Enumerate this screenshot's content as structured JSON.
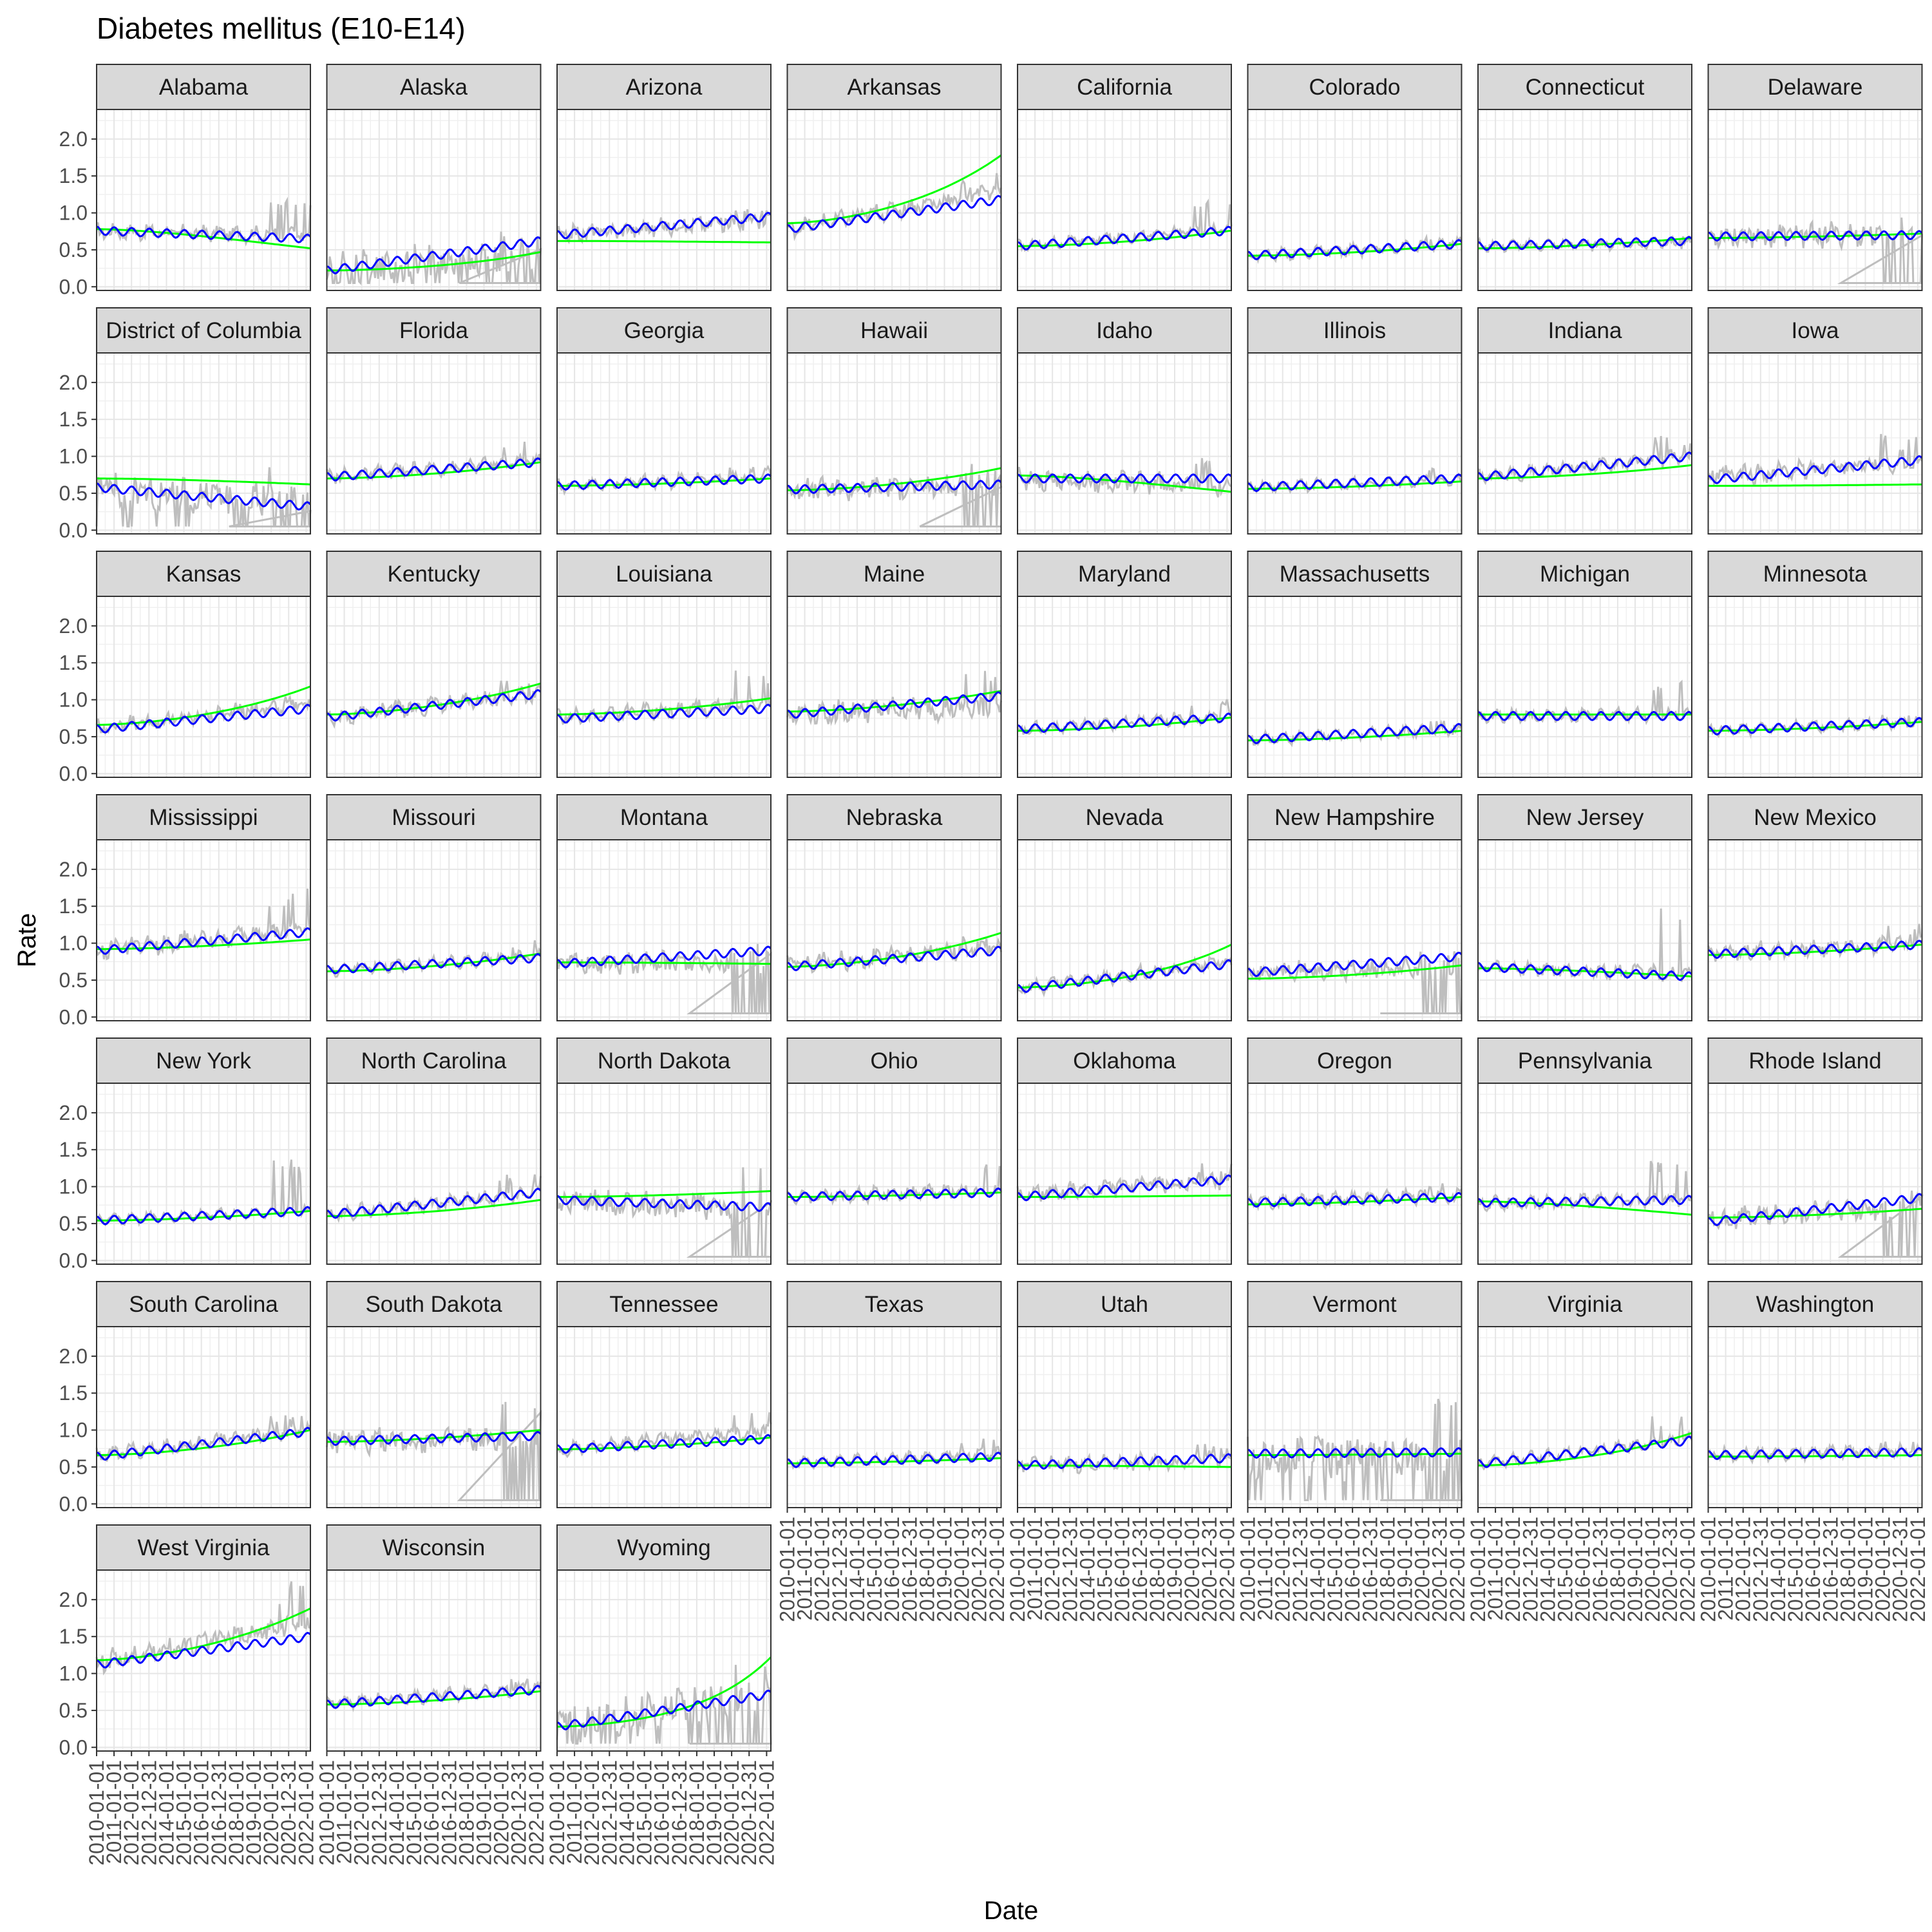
{
  "chart_data": {
    "type": "line",
    "title": "Diabetes mellitus (E10-E14)",
    "xlabel": "Date",
    "ylabel": "Rate",
    "ylim": [
      -0.05,
      2.4
    ],
    "y_ticks": [
      "0.0",
      "0.5",
      "1.0",
      "1.5",
      "2.0"
    ],
    "x_ticks": [
      "2010-01-01",
      "2011-01-01",
      "2012-01-01",
      "2012-12-31",
      "2014-01-01",
      "2015-01-01",
      "2016-01-01",
      "2016-12-31",
      "2018-01-01",
      "2019-01-01",
      "2020-01-01",
      "2020-12-31",
      "2022-01-01"
    ],
    "x_range": [
      "2010-01-01",
      "2022-03-31"
    ],
    "grid": true,
    "series_colors": {
      "observed": "#bebebe",
      "fitted": "#0000ff",
      "trend": "#00ff00"
    },
    "panels": [
      {
        "state": "Alabama",
        "fitted": [
          0.76,
          0.65
        ],
        "trend": [
          0.78,
          0.52
        ],
        "obs_mean": [
          0.75,
          0.7
        ],
        "noise": 0.08,
        "spike": 1.2,
        "dropout": false
      },
      {
        "state": "Alaska",
        "fitted": [
          0.22,
          0.62
        ],
        "trend": [
          0.22,
          0.47
        ],
        "obs_mean": [
          0.22,
          0.45
        ],
        "noise": 0.22,
        "spike": 0.8,
        "dropout": true
      },
      {
        "state": "Arizona",
        "fitted": [
          0.7,
          0.95
        ],
        "trend": [
          0.62,
          0.6
        ],
        "obs_mean": [
          0.7,
          0.92
        ],
        "noise": 0.09,
        "spike": 1.1,
        "dropout": false
      },
      {
        "state": "Arkansas",
        "fitted": [
          0.78,
          1.18
        ],
        "trend": [
          0.86,
          1.78
        ],
        "obs_mean": [
          0.78,
          1.3
        ],
        "noise": 0.09,
        "spike": 1.55,
        "dropout": false
      },
      {
        "state": "California",
        "fitted": [
          0.55,
          0.76
        ],
        "trend": [
          0.55,
          0.76
        ],
        "obs_mean": [
          0.55,
          0.8
        ],
        "noise": 0.05,
        "spike": 1.2,
        "dropout": false
      },
      {
        "state": "Colorado",
        "fitted": [
          0.42,
          0.58
        ],
        "trend": [
          0.42,
          0.58
        ],
        "obs_mean": [
          0.42,
          0.58
        ],
        "noise": 0.05,
        "spike": 0.68,
        "dropout": false
      },
      {
        "state": "Connecticut",
        "fitted": [
          0.55,
          0.62
        ],
        "trend": [
          0.52,
          0.66
        ],
        "obs_mean": [
          0.55,
          0.6
        ],
        "noise": 0.05,
        "spike": 0.7,
        "dropout": false
      },
      {
        "state": "Delaware",
        "fitted": [
          0.68,
          0.7
        ],
        "trend": [
          0.66,
          0.72
        ],
        "obs_mean": [
          0.7,
          0.7
        ],
        "noise": 0.14,
        "spike": 1.1,
        "dropout": true
      },
      {
        "state": "District of Columbia",
        "fitted": [
          0.58,
          0.32
        ],
        "trend": [
          0.7,
          0.62
        ],
        "obs_mean": [
          0.55,
          0.4
        ],
        "noise": 0.22,
        "spike": 1.0,
        "dropout": true
      },
      {
        "state": "Florida",
        "fitted": [
          0.72,
          0.92
        ],
        "trend": [
          0.7,
          0.92
        ],
        "obs_mean": [
          0.72,
          0.95
        ],
        "noise": 0.07,
        "spike": 1.3,
        "dropout": false
      },
      {
        "state": "Georgia",
        "fitted": [
          0.6,
          0.7
        ],
        "trend": [
          0.6,
          0.7
        ],
        "obs_mean": [
          0.6,
          0.72
        ],
        "noise": 0.06,
        "spike": 0.95,
        "dropout": false
      },
      {
        "state": "Hawaii",
        "fitted": [
          0.55,
          0.62
        ],
        "trend": [
          0.54,
          0.84
        ],
        "obs_mean": [
          0.55,
          0.6
        ],
        "noise": 0.13,
        "spike": 0.9,
        "dropout": true
      },
      {
        "state": "Idaho",
        "fitted": [
          0.7,
          0.7
        ],
        "trend": [
          0.74,
          0.52
        ],
        "obs_mean": [
          0.7,
          0.6
        ],
        "noise": 0.12,
        "spike": 1.0,
        "dropout": false
      },
      {
        "state": "Illinois",
        "fitted": [
          0.58,
          0.7
        ],
        "trend": [
          0.56,
          0.66
        ],
        "obs_mean": [
          0.58,
          0.68
        ],
        "noise": 0.05,
        "spike": 0.85,
        "dropout": false
      },
      {
        "state": "Indiana",
        "fitted": [
          0.72,
          1.0
        ],
        "trend": [
          0.7,
          0.88
        ],
        "obs_mean": [
          0.72,
          1.0
        ],
        "noise": 0.07,
        "spike": 1.3,
        "dropout": false
      },
      {
        "state": "Iowa",
        "fitted": [
          0.68,
          0.95
        ],
        "trend": [
          0.6,
          0.62
        ],
        "obs_mean": [
          0.7,
          0.95
        ],
        "noise": 0.12,
        "spike": 1.35,
        "dropout": false
      },
      {
        "state": "Kansas",
        "fitted": [
          0.6,
          0.88
        ],
        "trend": [
          0.66,
          1.18
        ],
        "obs_mean": [
          0.62,
          0.95
        ],
        "noise": 0.08,
        "spike": 1.05,
        "dropout": false
      },
      {
        "state": "Kentucky",
        "fitted": [
          0.76,
          1.08
        ],
        "trend": [
          0.8,
          1.22
        ],
        "obs_mean": [
          0.76,
          1.08
        ],
        "noise": 0.09,
        "spike": 1.35,
        "dropout": false
      },
      {
        "state": "Louisiana",
        "fitted": [
          0.74,
          0.88
        ],
        "trend": [
          0.8,
          1.02
        ],
        "obs_mean": [
          0.75,
          0.95
        ],
        "noise": 0.08,
        "spike": 1.4,
        "dropout": false
      },
      {
        "state": "Maine",
        "fitted": [
          0.8,
          1.05
        ],
        "trend": [
          0.84,
          1.12
        ],
        "obs_mean": [
          0.82,
          0.9
        ],
        "noise": 0.14,
        "spike": 1.4,
        "dropout": false
      },
      {
        "state": "Maryland",
        "fitted": [
          0.6,
          0.76
        ],
        "trend": [
          0.58,
          0.76
        ],
        "obs_mean": [
          0.6,
          0.78
        ],
        "noise": 0.06,
        "spike": 1.05,
        "dropout": false
      },
      {
        "state": "Massachusetts",
        "fitted": [
          0.46,
          0.62
        ],
        "trend": [
          0.45,
          0.58
        ],
        "obs_mean": [
          0.46,
          0.6
        ],
        "noise": 0.05,
        "spike": 0.72,
        "dropout": false
      },
      {
        "state": "Michigan",
        "fitted": [
          0.78,
          0.78
        ],
        "trend": [
          0.8,
          0.8
        ],
        "obs_mean": [
          0.78,
          0.8
        ],
        "noise": 0.06,
        "spike": 1.25,
        "dropout": false
      },
      {
        "state": "Minnesota",
        "fitted": [
          0.58,
          0.7
        ],
        "trend": [
          0.58,
          0.7
        ],
        "obs_mean": [
          0.58,
          0.7
        ],
        "noise": 0.05,
        "spike": 0.82,
        "dropout": false
      },
      {
        "state": "Mississippi",
        "fitted": [
          0.9,
          1.15
        ],
        "trend": [
          0.92,
          1.05
        ],
        "obs_mean": [
          0.9,
          1.2
        ],
        "noise": 0.1,
        "spike": 1.75,
        "dropout": false
      },
      {
        "state": "Missouri",
        "fitted": [
          0.64,
          0.8
        ],
        "trend": [
          0.62,
          0.86
        ],
        "obs_mean": [
          0.64,
          0.82
        ],
        "noise": 0.06,
        "spike": 1.05,
        "dropout": false
      },
      {
        "state": "Montana",
        "fitted": [
          0.72,
          0.9
        ],
        "trend": [
          0.74,
          0.72
        ],
        "obs_mean": [
          0.72,
          0.75
        ],
        "noise": 0.12,
        "spike": 1.0,
        "dropout": true
      },
      {
        "state": "Nebraska",
        "fitted": [
          0.68,
          0.9
        ],
        "trend": [
          0.68,
          1.14
        ],
        "obs_mean": [
          0.7,
          0.95
        ],
        "noise": 0.1,
        "spike": 1.1,
        "dropout": false
      },
      {
        "state": "Nevada",
        "fitted": [
          0.38,
          0.72
        ],
        "trend": [
          0.4,
          0.98
        ],
        "obs_mean": [
          0.38,
          0.75
        ],
        "noise": 0.07,
        "spike": 0.8,
        "dropout": false
      },
      {
        "state": "New Hampshire",
        "fitted": [
          0.6,
          0.82
        ],
        "trend": [
          0.52,
          0.7
        ],
        "obs_mean": [
          0.6,
          0.7
        ],
        "noise": 0.12,
        "spike": 0.95,
        "dropout": true
      },
      {
        "state": "New Jersey",
        "fitted": [
          0.68,
          0.55
        ],
        "trend": [
          0.66,
          0.55
        ],
        "obs_mean": [
          0.68,
          0.58
        ],
        "noise": 0.07,
        "spike": 1.48,
        "dropout": false
      },
      {
        "state": "New Mexico",
        "fitted": [
          0.85,
          0.98
        ],
        "trend": [
          0.84,
          0.98
        ],
        "obs_mean": [
          0.86,
          1.0
        ],
        "noise": 0.09,
        "spike": 1.3,
        "dropout": false
      },
      {
        "state": "New York",
        "fitted": [
          0.54,
          0.67
        ],
        "trend": [
          0.54,
          0.67
        ],
        "obs_mean": [
          0.55,
          0.68
        ],
        "noise": 0.04,
        "spike": 1.38,
        "dropout": false
      },
      {
        "state": "North Carolina",
        "fitted": [
          0.62,
          0.92
        ],
        "trend": [
          0.6,
          0.82
        ],
        "obs_mean": [
          0.62,
          0.92
        ],
        "noise": 0.07,
        "spike": 1.2,
        "dropout": false
      },
      {
        "state": "North Dakota",
        "fitted": [
          0.82,
          0.72
        ],
        "trend": [
          0.86,
          0.94
        ],
        "obs_mean": [
          0.8,
          0.7
        ],
        "noise": 0.16,
        "spike": 1.3,
        "dropout": true
      },
      {
        "state": "Ohio",
        "fitted": [
          0.86,
          0.92
        ],
        "trend": [
          0.86,
          0.92
        ],
        "obs_mean": [
          0.86,
          0.95
        ],
        "noise": 0.07,
        "spike": 1.35,
        "dropout": false
      },
      {
        "state": "Oklahoma",
        "fitted": [
          0.86,
          1.1
        ],
        "trend": [
          0.86,
          0.88
        ],
        "obs_mean": [
          0.88,
          1.1
        ],
        "noise": 0.09,
        "spike": 1.35,
        "dropout": false
      },
      {
        "state": "Oregon",
        "fitted": [
          0.78,
          0.86
        ],
        "trend": [
          0.76,
          0.86
        ],
        "obs_mean": [
          0.78,
          0.88
        ],
        "noise": 0.07,
        "spike": 1.1,
        "dropout": false
      },
      {
        "state": "Pennsylvania",
        "fitted": [
          0.78,
          0.82
        ],
        "trend": [
          0.8,
          0.62
        ],
        "obs_mean": [
          0.78,
          0.82
        ],
        "noise": 0.07,
        "spike": 1.38,
        "dropout": false
      },
      {
        "state": "Rhode Island",
        "fitted": [
          0.52,
          0.85
        ],
        "trend": [
          0.58,
          0.7
        ],
        "obs_mean": [
          0.55,
          0.75
        ],
        "noise": 0.12,
        "spike": 1.05,
        "dropout": true
      },
      {
        "state": "South Carolina",
        "fitted": [
          0.64,
          0.98
        ],
        "trend": [
          0.66,
          1.0
        ],
        "obs_mean": [
          0.66,
          1.0
        ],
        "noise": 0.08,
        "spike": 1.25,
        "dropout": false
      },
      {
        "state": "South Dakota",
        "fitted": [
          0.85,
          0.92
        ],
        "trend": [
          0.84,
          1.0
        ],
        "obs_mean": [
          0.85,
          0.85
        ],
        "noise": 0.14,
        "spike": 1.4,
        "dropout": true
      },
      {
        "state": "Tennessee",
        "fitted": [
          0.74,
          0.88
        ],
        "trend": [
          0.74,
          0.9
        ],
        "obs_mean": [
          0.74,
          1.0
        ],
        "noise": 0.07,
        "spike": 1.35,
        "dropout": false
      },
      {
        "state": "Texas",
        "fitted": [
          0.55,
          0.64
        ],
        "trend": [
          0.55,
          0.62
        ],
        "obs_mean": [
          0.55,
          0.68
        ],
        "noise": 0.05,
        "spike": 0.92,
        "dropout": false
      },
      {
        "state": "Utah",
        "fitted": [
          0.52,
          0.62
        ],
        "trend": [
          0.52,
          0.5
        ],
        "obs_mean": [
          0.52,
          0.6
        ],
        "noise": 0.08,
        "spike": 0.82,
        "dropout": false
      },
      {
        "state": "Vermont",
        "fitted": [
          0.68,
          0.7
        ],
        "trend": [
          0.66,
          0.68
        ],
        "obs_mean": [
          0.62,
          0.6
        ],
        "noise": 0.28,
        "spike": 1.45,
        "dropout": true
      },
      {
        "state": "Virginia",
        "fitted": [
          0.54,
          0.86
        ],
        "trend": [
          0.52,
          0.96
        ],
        "obs_mean": [
          0.54,
          0.88
        ],
        "noise": 0.05,
        "spike": 1.2,
        "dropout": false
      },
      {
        "state": "Washington",
        "fitted": [
          0.66,
          0.7
        ],
        "trend": [
          0.64,
          0.66
        ],
        "obs_mean": [
          0.66,
          0.72
        ],
        "noise": 0.06,
        "spike": 0.95,
        "dropout": false
      },
      {
        "state": "West Virginia",
        "fitted": [
          1.12,
          1.5
        ],
        "trend": [
          1.18,
          1.88
        ],
        "obs_mean": [
          1.15,
          1.7
        ],
        "noise": 0.12,
        "spike": 2.25,
        "dropout": false
      },
      {
        "state": "Wisconsin",
        "fitted": [
          0.58,
          0.78
        ],
        "trend": [
          0.58,
          0.76
        ],
        "obs_mean": [
          0.6,
          0.8
        ],
        "noise": 0.06,
        "spike": 0.95,
        "dropout": false
      },
      {
        "state": "Wyoming",
        "fitted": [
          0.28,
          0.72
        ],
        "trend": [
          0.28,
          1.22
        ],
        "obs_mean": [
          0.28,
          0.7
        ],
        "noise": 0.25,
        "spike": 1.15,
        "dropout": true
      }
    ]
  }
}
